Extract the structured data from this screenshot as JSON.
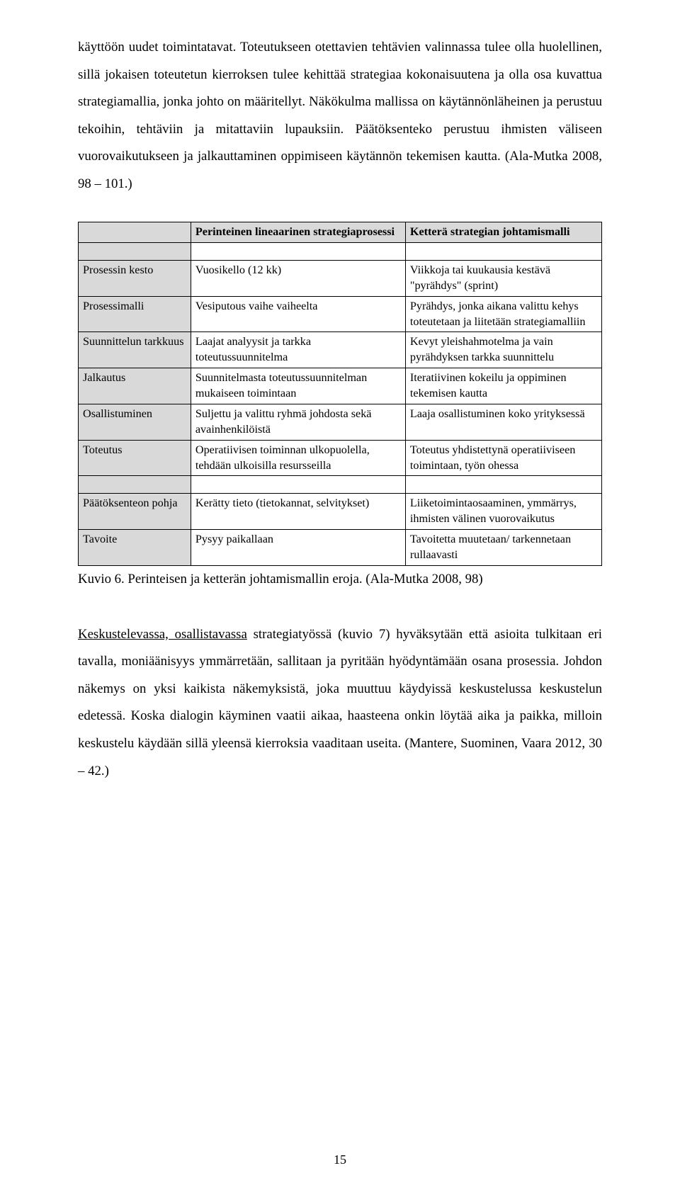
{
  "para1": "käyttöön uudet toimintatavat. Toteutukseen otettavien tehtävien valinnassa tulee olla huolellinen, sillä jokaisen toteutetun kierroksen tulee kehittää strategiaa kokonaisuutena ja olla osa kuvattua strategiamallia, jonka johto on määritellyt. Näkökulma mallissa on käytännönläheinen ja perustuu tekoihin, tehtäviin ja mitattaviin lupauksiin. Päätöksenteko perustuu ihmisten väliseen vuorovaikutukseen ja jalkauttaminen oppimiseen käytännön tekemisen kautta. (Ala-Mutka 2008, 98 – 101.)",
  "table": {
    "header": {
      "col1": "",
      "col2": "Perinteinen lineaarinen strategiaprosessi",
      "col3": "Ketterä strategian johtamismalli"
    },
    "rows": [
      {
        "label": "Prosessin kesto",
        "c2": "Vuosikello (12 kk)",
        "c3": "Viikkoja tai kuukausia kestävä \"pyrähdys\" (sprint)"
      },
      {
        "label": "Prosessimalli",
        "c2": "Vesiputous vaihe vaiheelta",
        "c3": "Pyrähdys, jonka aikana valittu kehys toteutetaan ja liitetään strategiamalliin"
      },
      {
        "label": "Suunnittelun tarkkuus",
        "c2": "Laajat analyysit ja tarkka toteutussuunnitelma",
        "c3": "Kevyt yleishahmotelma ja vain pyrähdyksen tarkka suunnittelu"
      },
      {
        "label": "Jalkautus",
        "c2": "Suunnitelmasta toteutussuunnitelman mukaiseen toimintaan",
        "c3": "Iteratiivinen kokeilu ja oppiminen tekemisen kautta"
      },
      {
        "label": "Osallistuminen",
        "c2": "Suljettu ja valittu ryhmä johdosta sekä avainhenkilöistä",
        "c3": "Laaja osallistuminen koko yrityksessä"
      },
      {
        "label": "Toteutus",
        "c2": "Operatiivisen toiminnan ulkopuolella, tehdään ulkoisilla resursseilla",
        "c3": "Toteutus yhdistettynä operatiiviseen toimintaan, työn ohessa"
      }
    ],
    "rows2": [
      {
        "label": "Päätöksenteon pohja",
        "c2": "Kerätty tieto (tietokannat, selvitykset)",
        "c3": "Liiketoimintaosaaminen, ymmärrys, ihmisten välinen vuorovaikutus"
      },
      {
        "label": "Tavoite",
        "c2": "Pysyy paikallaan",
        "c3": "Tavoitetta muutetaan/ tarkennetaan rullaavasti"
      }
    ]
  },
  "caption": "Kuvio 6. Perinteisen ja ketterän johtamismallin eroja. (Ala-Mutka 2008, 98)",
  "para2": {
    "lead_underlined": "Keskustelevassa, osallistavassa",
    "rest": " strategiatyössä (kuvio 7) hyväksytään että asioita tulkitaan eri tavalla, moniäänisyys ymmärretään, sallitaan ja pyritään hyödyntämään osana prosessia. Johdon näkemys on yksi kaikista näkemyksistä, joka muuttuu käydyissä keskustelussa keskustelun edetessä. Koska dialogin käyminen vaatii aikaa, haasteena onkin löytää aika ja paikka, milloin keskustelu käydään sillä yleensä kierroksia vaaditaan useita. (Mantere, Suominen, Vaara 2012, 30 – 42.)"
  },
  "page_number": "15"
}
